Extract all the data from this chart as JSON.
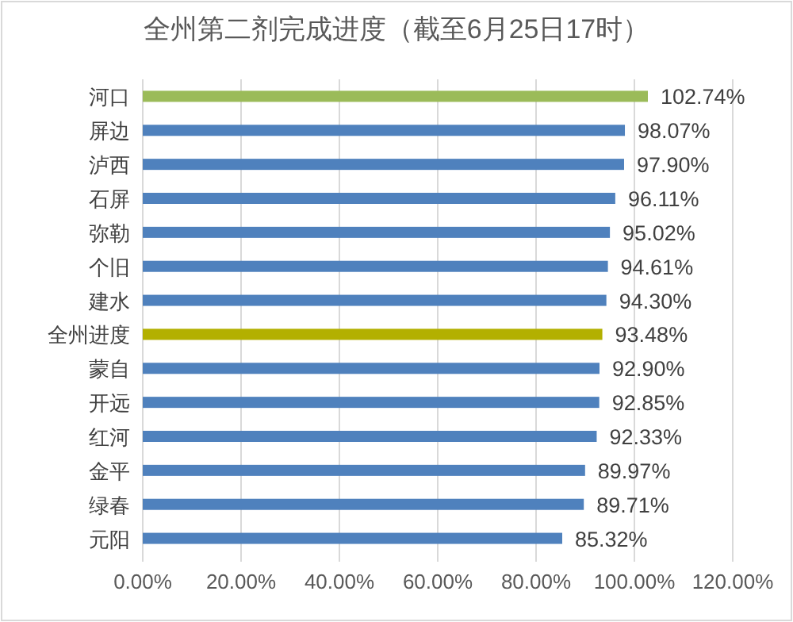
{
  "chart_data": {
    "type": "bar",
    "orientation": "horizontal",
    "title": "全州第二剂完成进度（截至6月25日17时）",
    "categories": [
      "河口",
      "屏边",
      "泸西",
      "石屏",
      "弥勒",
      "个旧",
      "建水",
      "全州进度",
      "蒙自",
      "开远",
      "红河",
      "金平",
      "绿春",
      "元阳"
    ],
    "values": [
      102.74,
      98.07,
      97.9,
      96.11,
      95.02,
      94.61,
      94.3,
      93.48,
      92.9,
      92.85,
      92.33,
      89.97,
      89.71,
      85.32
    ],
    "value_labels": [
      "102.74%",
      "98.07%",
      "97.90%",
      "96.11%",
      "95.02%",
      "94.61%",
      "94.30%",
      "93.48%",
      "92.90%",
      "92.85%",
      "92.33%",
      "89.97%",
      "89.71%",
      "85.32%"
    ],
    "colors": [
      "#9bbb59",
      "#4f81bd",
      "#4f81bd",
      "#4f81bd",
      "#4f81bd",
      "#4f81bd",
      "#4f81bd",
      "#b3b000",
      "#4f81bd",
      "#4f81bd",
      "#4f81bd",
      "#4f81bd",
      "#4f81bd",
      "#4f81bd"
    ],
    "xlim": [
      0,
      120
    ],
    "xticks": [
      {
        "value": 0,
        "label": "0.00%"
      },
      {
        "value": 20,
        "label": "20.00%"
      },
      {
        "value": 40,
        "label": "40.00%"
      },
      {
        "value": 60,
        "label": "60.00%"
      },
      {
        "value": 80,
        "label": "80.00%"
      },
      {
        "value": 100,
        "label": "100.00%"
      },
      {
        "value": 120,
        "label": "120.00%"
      }
    ],
    "grid": "x"
  }
}
